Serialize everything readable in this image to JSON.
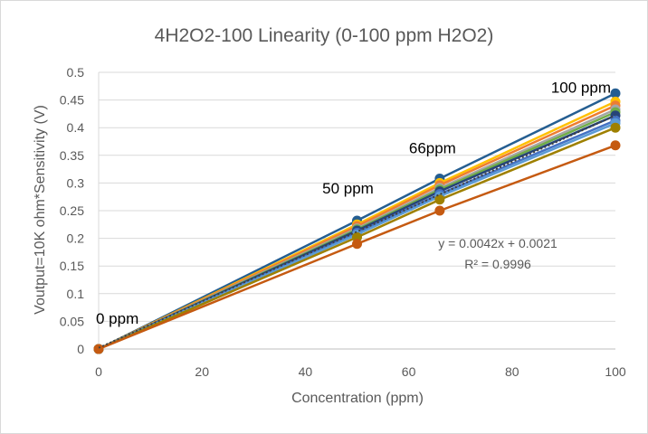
{
  "chart_data": {
    "type": "scatter",
    "title": "4H2O2-100 Linearity (0-100 ppm H2O2)",
    "xlabel": "Concentration (ppm)",
    "ylabel": "Voutput=10K ohm*Sensitivity (V)",
    "xlim": [
      0,
      100
    ],
    "ylim": [
      0,
      0.5
    ],
    "x_ticks": [
      "0",
      "20",
      "40",
      "60",
      "80",
      "100"
    ],
    "y_ticks": [
      "0",
      "0.05",
      "0.1",
      "0.15",
      "0.2",
      "0.25",
      "0.3",
      "0.35",
      "0.4",
      "0.45",
      "0.5"
    ],
    "x": [
      0,
      50,
      66,
      100
    ],
    "grid": "horizontal",
    "legend": "none",
    "series": [
      {
        "color": "#255e91",
        "values": [
          0,
          0.232,
          0.308,
          0.462
        ]
      },
      {
        "color": "#ffc000",
        "values": [
          0,
          0.225,
          0.3,
          0.447
        ]
      },
      {
        "color": "#ed7d31",
        "values": [
          0,
          0.222,
          0.296,
          0.44
        ]
      },
      {
        "color": "#a5a5a5",
        "values": [
          0,
          0.218,
          0.291,
          0.433
        ]
      },
      {
        "color": "#70ad47",
        "values": [
          0,
          0.216,
          0.288,
          0.428
        ]
      },
      {
        "color": "#264478",
        "values": [
          0,
          0.214,
          0.285,
          0.422
        ]
      },
      {
        "color": "#4472c4",
        "values": [
          0,
          0.21,
          0.28,
          0.413
        ]
      },
      {
        "color": "#5b9bd5",
        "values": [
          0,
          0.207,
          0.276,
          0.408
        ]
      },
      {
        "color": "#9e8000",
        "values": [
          0,
          0.202,
          0.27,
          0.4
        ]
      },
      {
        "color": "#c55a11",
        "values": [
          0,
          0.19,
          0.25,
          0.368
        ]
      }
    ],
    "trendline": {
      "slope": 0.0042,
      "intercept": 0.0021,
      "color": "#404040",
      "style": "dotted"
    },
    "annotations": [
      {
        "text": "0 ppm",
        "x": 0,
        "y": 0
      },
      {
        "text": "50 ppm",
        "x": 50,
        "y": 0.232
      },
      {
        "text": "66ppm",
        "x": 66,
        "y": 0.308
      },
      {
        "text": "100 ppm",
        "x": 100,
        "y": 0.462
      }
    ],
    "equation": "y = 0.0042x + 0.0021",
    "r_squared": "R² = 0.9996"
  }
}
